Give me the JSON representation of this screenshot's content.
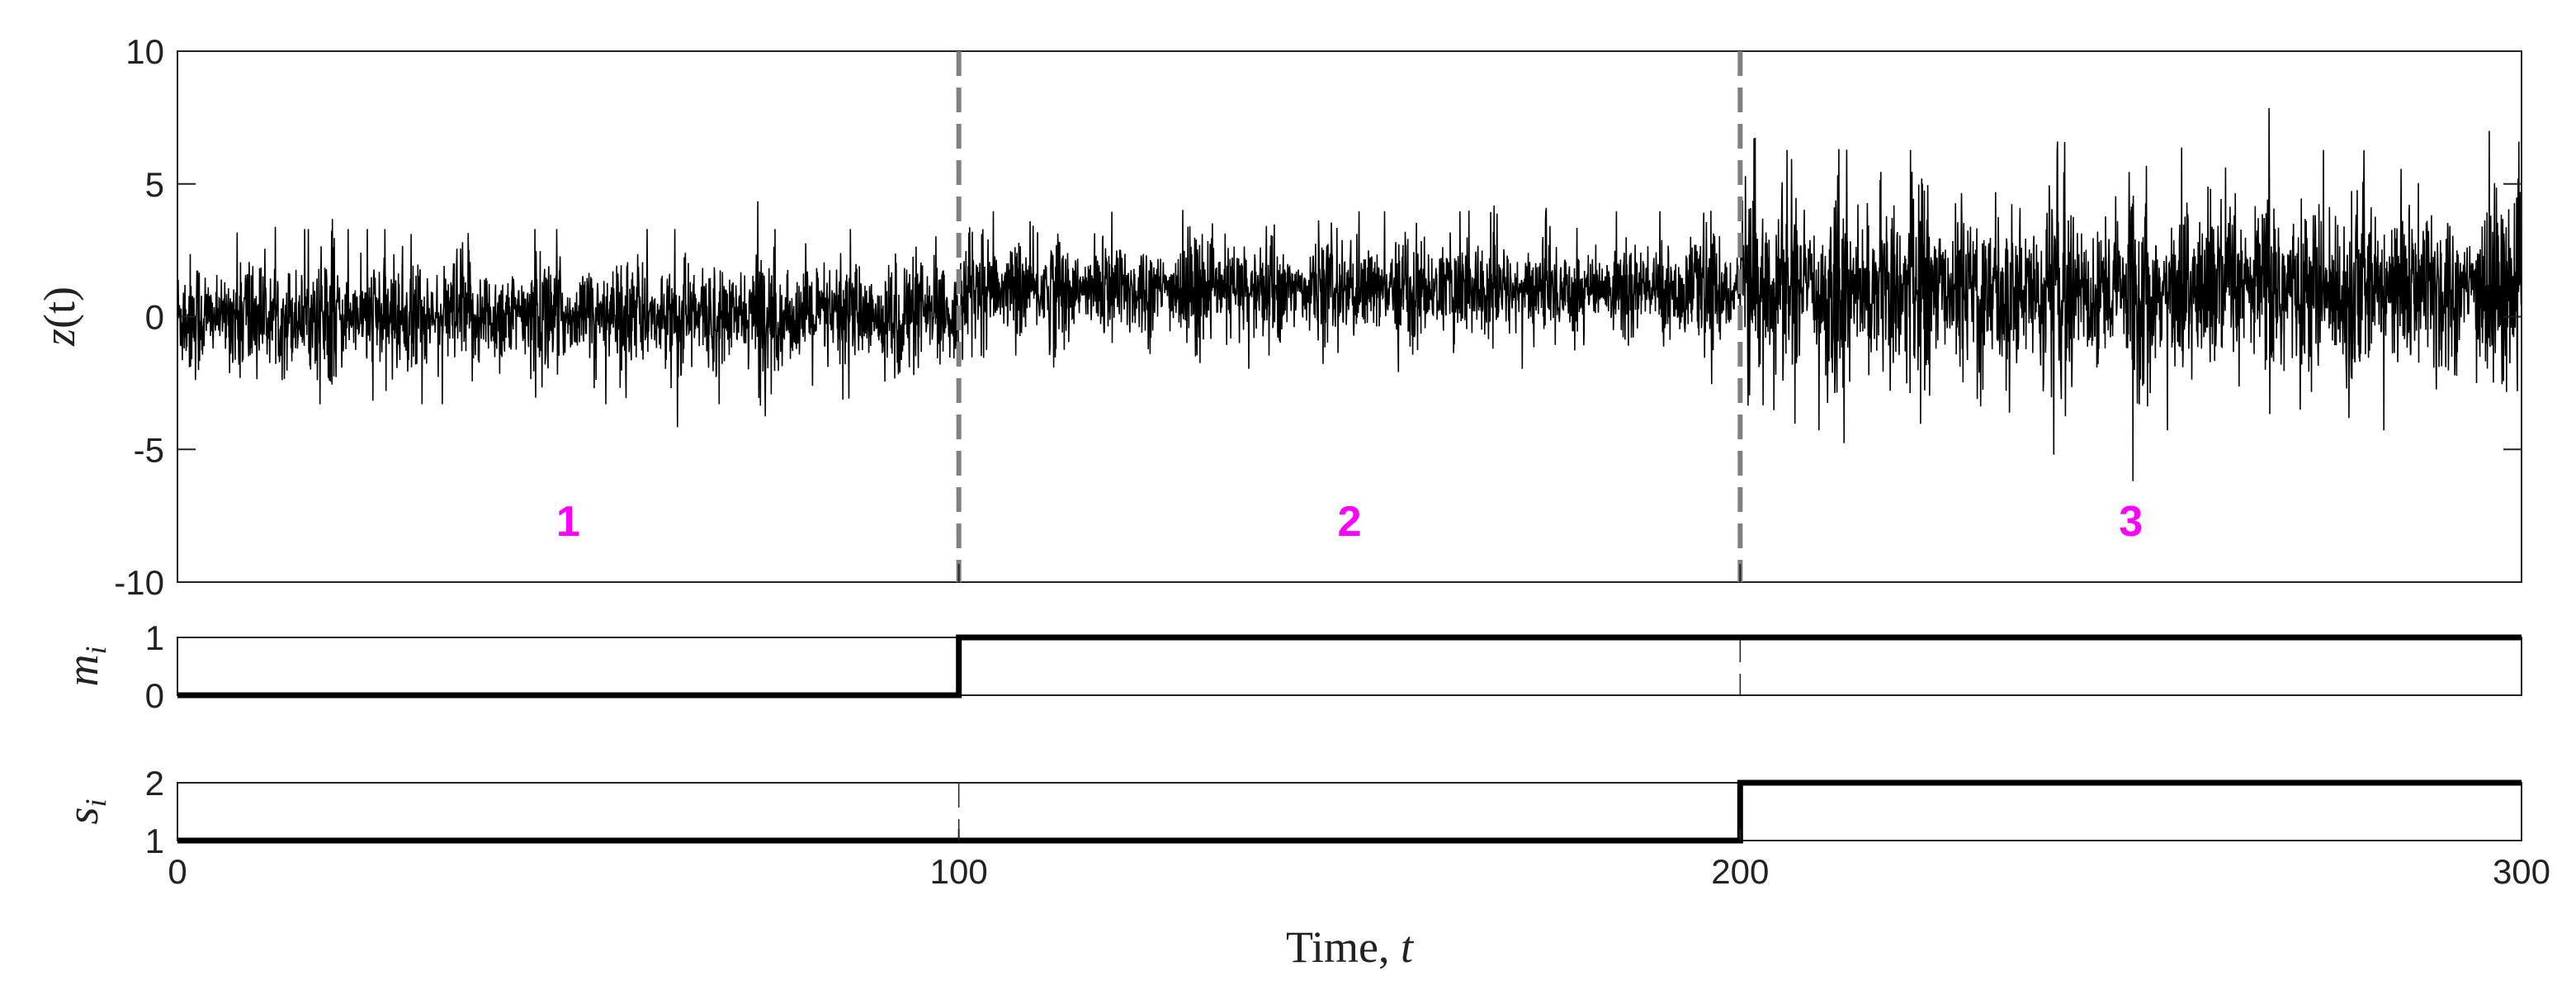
{
  "chart_data": [
    {
      "type": "line",
      "title": "",
      "ylabel": "z(t)",
      "xlim": [
        0,
        300
      ],
      "ylim": [
        -10,
        10
      ],
      "yticks": [
        -10,
        -5,
        0,
        5,
        10
      ],
      "ytick_labels": [
        "-10",
        "-5",
        "0",
        "5",
        "10"
      ],
      "grid": false,
      "series": [
        {
          "segments": [
            {
              "from": 0,
              "to": 100,
              "mean": 0.0,
              "std": 1.0,
              "min": -4.5,
              "max": 4.6
            },
            {
              "from": 100,
              "to": 200,
              "mean": 1.0,
              "std": 0.9,
              "min": -3.5,
              "max": 5.5
            },
            {
              "from": 200,
              "to": 300,
              "mean": 1.0,
              "std": 1.6,
              "min": -6.2,
              "max": 8.3
            }
          ],
          "color": "#000000"
        }
      ],
      "change_points": [
        100,
        200
      ],
      "change_point_color": "#808080",
      "annotations": [
        {
          "text": "1",
          "x": 50,
          "y": -7.7
        },
        {
          "text": "2",
          "x": 150,
          "y": -7.7
        },
        {
          "text": "3",
          "x": 250,
          "y": -7.7
        }
      ],
      "annotation_color": "#ff00ff"
    },
    {
      "type": "line",
      "ylabel": "m_i",
      "xlim": [
        0,
        300
      ],
      "ylim": [
        0,
        1
      ],
      "yticks": [
        0,
        1
      ],
      "ytick_labels": [
        "0",
        "1"
      ],
      "series": [
        {
          "x": [
            0,
            100,
            100,
            300
          ],
          "y": [
            0,
            0,
            1,
            1
          ],
          "color": "#000000"
        }
      ]
    },
    {
      "type": "line",
      "ylabel": "s_i",
      "xlabel": "Time, t",
      "xlim": [
        0,
        300
      ],
      "ylim": [
        1,
        2
      ],
      "yticks": [
        1,
        2
      ],
      "ytick_labels": [
        "1",
        "2"
      ],
      "xticks": [
        0,
        100,
        200,
        300
      ],
      "xtick_labels": [
        "0",
        "100",
        "200",
        "300"
      ],
      "series": [
        {
          "x": [
            0,
            200,
            200,
            300
          ],
          "y": [
            1,
            1,
            2,
            2
          ],
          "color": "#000000"
        }
      ]
    }
  ],
  "labels": {
    "z_ylabel_main": "z",
    "z_ylabel_arg": "(t)",
    "m_ylabel_main": "m",
    "m_ylabel_sub": "i",
    "s_ylabel_main": "s",
    "s_ylabel_sub": "i",
    "xlabel_text": "Time, ",
    "xlabel_var": "t"
  }
}
